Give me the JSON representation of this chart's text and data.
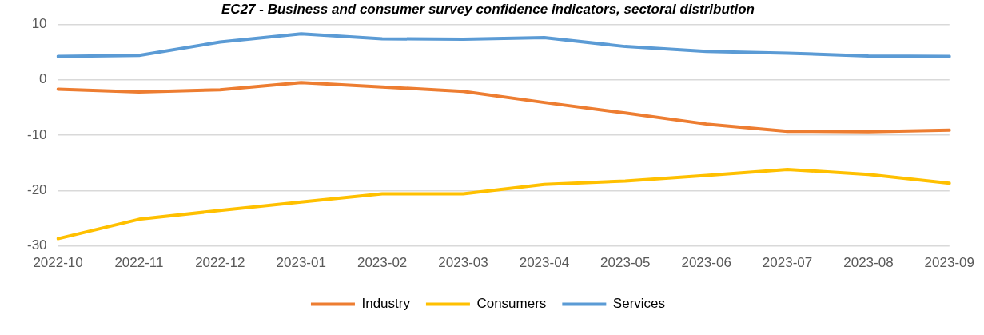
{
  "chart_data": {
    "type": "line",
    "title": "EC27 - Business and consumer survey confidence indicators, sectoral distribution",
    "categories": [
      "2022-10",
      "2022-11",
      "2022-12",
      "2023-01",
      "2023-02",
      "2023-03",
      "2023-04",
      "2023-05",
      "2023-06",
      "2023-07",
      "2023-08",
      "2023-09"
    ],
    "series": [
      {
        "name": "Industry",
        "color": "#ed7d31",
        "values": [
          -1.7,
          -2.2,
          -1.8,
          -0.5,
          -1.3,
          -2.1,
          -4.1,
          -6.0,
          -8.0,
          -9.3,
          -9.4,
          -9.1
        ]
      },
      {
        "name": "Consumers",
        "color": "#ffc000",
        "values": [
          -28.7,
          -25.2,
          -23.6,
          -22.1,
          -20.6,
          -20.6,
          -18.9,
          -18.3,
          -17.3,
          -16.2,
          -17.1,
          -18.7
        ]
      },
      {
        "name": "Services",
        "color": "#5b9bd5",
        "values": [
          4.2,
          4.4,
          6.8,
          8.3,
          7.4,
          7.3,
          7.6,
          6.0,
          5.1,
          4.8,
          4.3,
          4.2
        ]
      }
    ],
    "ylim": [
      -30,
      10
    ],
    "yticks": [
      -30,
      -20,
      -10,
      0,
      10
    ],
    "grid": "y",
    "legend": "bottom",
    "marker": "none",
    "line_style": "solid"
  }
}
